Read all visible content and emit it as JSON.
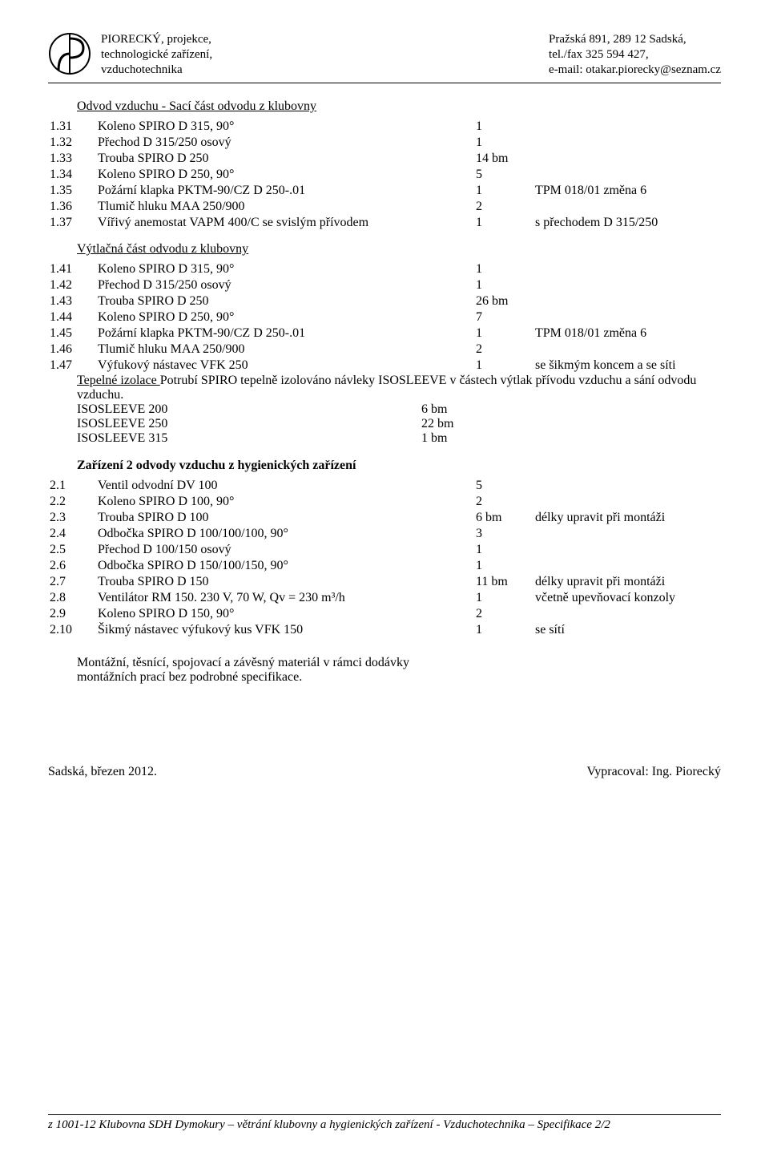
{
  "header": {
    "left": "PIORECKÝ, projekce,\ntechnologické zařízení,\nvzduchotechnika",
    "right": "Pražská 891, 289 12  Sadská,\ntel./fax  325 594 427,\ne-mail: otakar.piorecky@seznam.cz"
  },
  "section1": {
    "title": "Odvod vzduchu  - Sací část odvodu z klubovny",
    "rows": [
      {
        "n": "1.31",
        "d": "Koleno SPIRO D 315, 90°",
        "q": "1",
        "note": ""
      },
      {
        "n": "1.32",
        "d": "Přechod D 315/250 osový",
        "q": "1",
        "note": ""
      },
      {
        "n": "1.33",
        "d": "Trouba SPIRO D 250",
        "q": "14 bm",
        "note": ""
      },
      {
        "n": "1.34",
        "d": "Koleno SPIRO D 250, 90°",
        "q": "5",
        "note": ""
      },
      {
        "n": "1.35",
        "d": "Požární klapka PKTM-90/CZ D 250-.01",
        "q": "1",
        "note": "TPM 018/01 změna 6"
      },
      {
        "n": "1.36",
        "d": "Tlumič hluku MAA 250/900",
        "q": "2",
        "note": ""
      },
      {
        "n": "1.37",
        "d": "Vířivý anemostat VAPM 400/C se svislým přívodem",
        "q": "1",
        "note": "s přechodem D 315/250"
      }
    ]
  },
  "section2": {
    "title": "Výtlačná část odvodu z klubovny",
    "rows": [
      {
        "n": "1.41",
        "d": "Koleno SPIRO D 315, 90°",
        "q": "1",
        "note": ""
      },
      {
        "n": "1.42",
        "d": "Přechod D 315/250 osový",
        "q": "1",
        "note": ""
      },
      {
        "n": "1.43",
        "d": "Trouba SPIRO D 250",
        "q": "26 bm",
        "note": ""
      },
      {
        "n": "1.44",
        "d": "Koleno SPIRO D 250, 90°",
        "q": "7",
        "note": ""
      },
      {
        "n": "1.45",
        "d": "Požární klapka PKTM-90/CZ D 250-.01",
        "q": "1",
        "note": "TPM 018/01 změna 6"
      },
      {
        "n": "1.46",
        "d": "Tlumič hluku MAA 250/900",
        "q": "2",
        "note": ""
      },
      {
        "n": "1.47",
        "d": "Výfukový nástavec  VFK 250",
        "q": "1",
        "note": "se šikmým koncem a se síti"
      }
    ]
  },
  "isoleeve": {
    "intro_span1": "Tepelné izolace ",
    "intro_rest": " Potrubí SPIRO tepelně izolováno návleky ISOSLEEVE v částech výtlak přívodu vzduchu a sání odvodu vzduchu.",
    "rows": [
      {
        "l": "ISOSLEEVE 200",
        "v": "6 bm"
      },
      {
        "l": "ISOSLEEVE 250",
        "v": "22 bm"
      },
      {
        "l": "ISOSLEEVE 315",
        "v": "1 bm"
      }
    ]
  },
  "section3": {
    "title": "Zařízení 2 odvody vzduchu z hygienických zařízení",
    "rows": [
      {
        "n": "2.1",
        "d": "Ventil odvodní DV 100",
        "q": "5",
        "note": ""
      },
      {
        "n": "2.2",
        "d": "Koleno SPIRO D 100, 90°",
        "q": "2",
        "note": ""
      },
      {
        "n": "2.3",
        "d": "Trouba SPIRO D 100",
        "q": "6 bm",
        "note": "délky upravit při montáži"
      },
      {
        "n": "2.4",
        "d": "Odbočka SPIRO D 100/100/100, 90°",
        "q": "3",
        "note": ""
      },
      {
        "n": "2.5",
        "d": "Přechod D 100/150 osový",
        "q": "1",
        "note": ""
      },
      {
        "n": "2.6",
        "d": "Odbočka SPIRO D 150/100/150, 90°",
        "q": "1",
        "note": ""
      },
      {
        "n": "2.7",
        "d": "Trouba SPIRO D 150",
        "q": "11 bm",
        "note": "délky upravit při montáži"
      },
      {
        "n": "2.8",
        "d": "Ventilátor RM 150. 230 V, 70 W, Qv = 230 m³/h",
        "q": "1",
        "note": "včetně upevňovací konzoly"
      },
      {
        "n": "2.9",
        "d": "Koleno SPIRO D 150, 90°",
        "q": "2",
        "note": ""
      },
      {
        "n": "2.10",
        "d": "Šikmý nástavec výfukový kus VFK 150",
        "q": "1",
        "note": "se sítí"
      }
    ]
  },
  "closing_lines": "Montážní, těsnící, spojovací a závěsný materiál v rámci dodávky\nmontážních prací bez podrobné specifikace.",
  "sign": {
    "left": "Sadská, březen 2012.",
    "right": "Vypracoval: Ing. Piorecký"
  },
  "footer": "z 1001-12  Klubovna SDH Dymokury – větrání klubovny a hygienických zařízení - Vzduchotechnika – Specifikace 2/2"
}
